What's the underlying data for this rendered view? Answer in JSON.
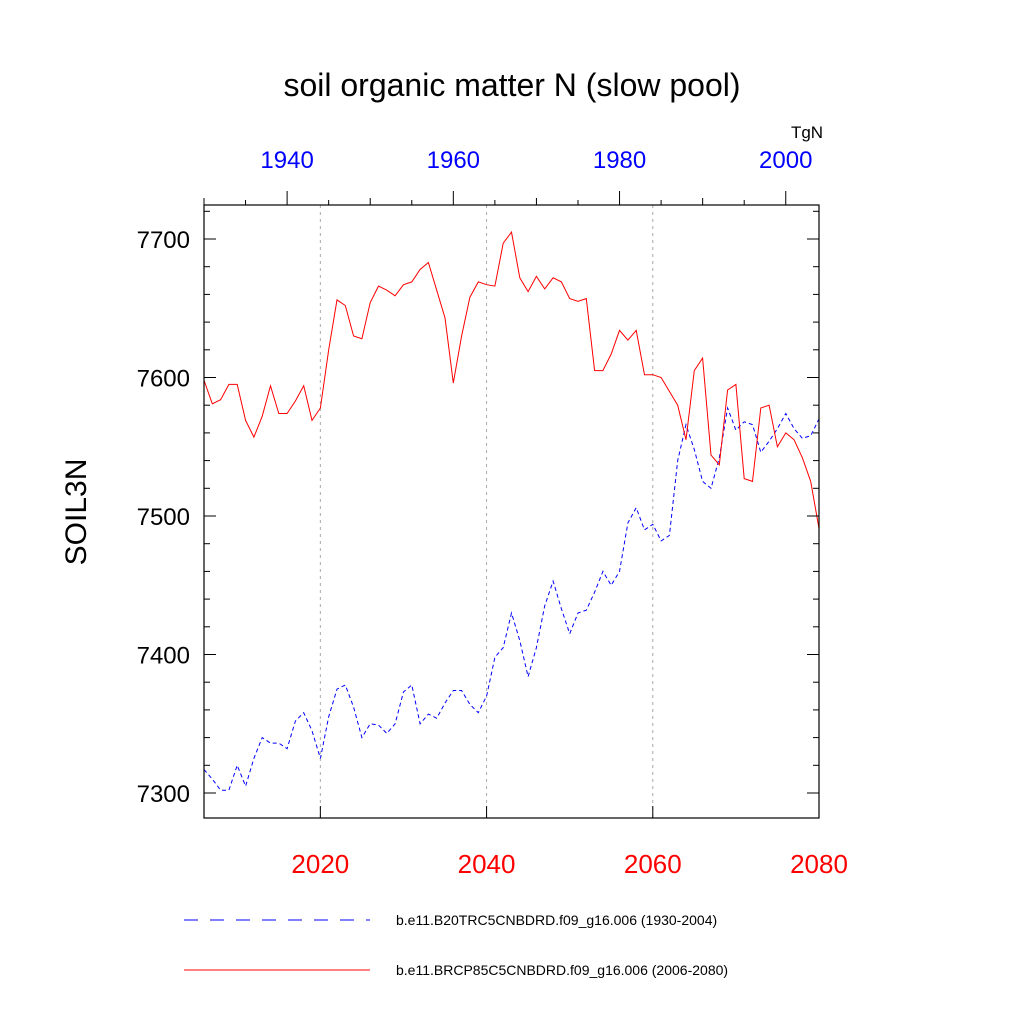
{
  "chart_data": {
    "type": "line",
    "title": "soil organic matter N (slow pool)",
    "ylabel": "SOIL3N",
    "units": "TgN",
    "ylim": [
      7280,
      7725
    ],
    "yticks": [
      7300,
      7400,
      7500,
      7600,
      7700
    ],
    "top_axis": {
      "color": "#0000ff",
      "range": [
        1930,
        2004
      ],
      "ticks": [
        1940,
        1960,
        1980,
        2000
      ]
    },
    "bottom_axis": {
      "color": "#ff0000",
      "range": [
        2006,
        2080
      ],
      "ticks": [
        2020,
        2040,
        2060,
        2080
      ]
    },
    "grid": {
      "vertical_dotted_at_bottom_ticks": [
        2020,
        2040,
        2060
      ]
    },
    "series": [
      {
        "name": "b.e11.B20TRC5CNBDRD.f09_g16.006 (1930-2004)",
        "axis": "top",
        "color": "#0000ff",
        "dash": "dashed",
        "x": [
          1930,
          1931,
          1932,
          1933,
          1934,
          1935,
          1936,
          1937,
          1938,
          1939,
          1940,
          1941,
          1942,
          1943,
          1944,
          1945,
          1946,
          1947,
          1948,
          1949,
          1950,
          1951,
          1952,
          1953,
          1954,
          1955,
          1956,
          1957,
          1958,
          1959,
          1960,
          1961,
          1962,
          1963,
          1964,
          1965,
          1966,
          1967,
          1968,
          1969,
          1970,
          1971,
          1972,
          1973,
          1974,
          1975,
          1976,
          1977,
          1978,
          1979,
          1980,
          1981,
          1982,
          1983,
          1984,
          1985,
          1986,
          1987,
          1988,
          1989,
          1990,
          1991,
          1992,
          1993,
          1994,
          1995,
          1996,
          1997,
          1998,
          1999,
          2000,
          2001,
          2002,
          2003,
          2004
        ],
        "values": [
          7317,
          7310,
          7302,
          7302,
          7320,
          7305,
          7325,
          7340,
          7336,
          7336,
          7332,
          7352,
          7358,
          7345,
          7325,
          7355,
          7375,
          7378,
          7362,
          7340,
          7350,
          7349,
          7343,
          7350,
          7373,
          7378,
          7350,
          7357,
          7354,
          7365,
          7374,
          7374,
          7364,
          7358,
          7370,
          7398,
          7405,
          7430,
          7410,
          7384,
          7405,
          7435,
          7453,
          7433,
          7415,
          7430,
          7432,
          7445,
          7460,
          7450,
          7460,
          7495,
          7506,
          7490,
          7494,
          7482,
          7486,
          7540,
          7566,
          7548,
          7525,
          7520,
          7542,
          7578,
          7562,
          7568,
          7566,
          7546,
          7554,
          7563,
          7574,
          7563,
          7556,
          7558,
          7570
        ]
      },
      {
        "name": "b.e11.BRCP85C5CNBDRD.f09_g16.006 (2006-2080)",
        "axis": "bottom",
        "color": "#ff0000",
        "dash": "solid",
        "x": [
          2006,
          2007,
          2008,
          2009,
          2010,
          2011,
          2012,
          2013,
          2014,
          2015,
          2016,
          2017,
          2018,
          2019,
          2020,
          2021,
          2022,
          2023,
          2024,
          2025,
          2026,
          2027,
          2028,
          2029,
          2030,
          2031,
          2032,
          2033,
          2034,
          2035,
          2036,
          2037,
          2038,
          2039,
          2040,
          2041,
          2042,
          2043,
          2044,
          2045,
          2046,
          2047,
          2048,
          2049,
          2050,
          2051,
          2052,
          2053,
          2054,
          2055,
          2056,
          2057,
          2058,
          2059,
          2060,
          2061,
          2062,
          2063,
          2064,
          2065,
          2066,
          2067,
          2068,
          2069,
          2070,
          2071,
          2072,
          2073,
          2074,
          2075,
          2076,
          2077,
          2078,
          2079,
          2080
        ],
        "values": [
          7598,
          7581,
          7584,
          7595,
          7595,
          7569,
          7557,
          7572,
          7594,
          7574,
          7574,
          7583,
          7594,
          7569,
          7578,
          7620,
          7656,
          7652,
          7630,
          7628,
          7654,
          7666,
          7663,
          7659,
          7667,
          7669,
          7678,
          7683,
          7663,
          7643,
          7596,
          7630,
          7658,
          7669,
          7667,
          7666,
          7697,
          7705,
          7672,
          7662,
          7673,
          7664,
          7672,
          7669,
          7657,
          7655,
          7657,
          7605,
          7605,
          7617,
          7634,
          7627,
          7634,
          7602,
          7602,
          7600,
          7590,
          7580,
          7555,
          7605,
          7614,
          7544,
          7537,
          7591,
          7595,
          7527,
          7525,
          7578,
          7580,
          7550,
          7560,
          7555,
          7542,
          7525,
          7491
        ]
      }
    ]
  }
}
